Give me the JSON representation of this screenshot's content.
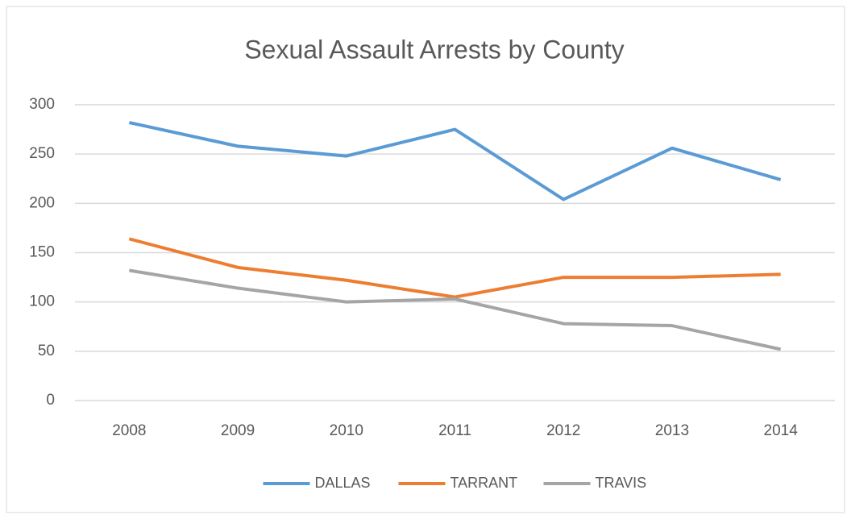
{
  "chart_data": {
    "type": "line",
    "title": "Sexual Assault Arrests by County",
    "categories": [
      "2008",
      "2009",
      "2010",
      "2011",
      "2012",
      "2013",
      "2014"
    ],
    "series": [
      {
        "name": "DALLAS",
        "color": "#5b9bd5",
        "values": [
          282,
          258,
          248,
          275,
          204,
          256,
          224
        ]
      },
      {
        "name": "TARRANT",
        "color": "#ed7d31",
        "values": [
          164,
          135,
          122,
          105,
          125,
          125,
          128
        ]
      },
      {
        "name": "TRAVIS",
        "color": "#a5a5a5",
        "values": [
          132,
          114,
          100,
          103,
          78,
          76,
          52
        ]
      }
    ],
    "ylim": [
      0,
      300
    ],
    "yticks": [
      0,
      50,
      100,
      150,
      200,
      250,
      300
    ],
    "grid": true,
    "legend": "bottom"
  }
}
